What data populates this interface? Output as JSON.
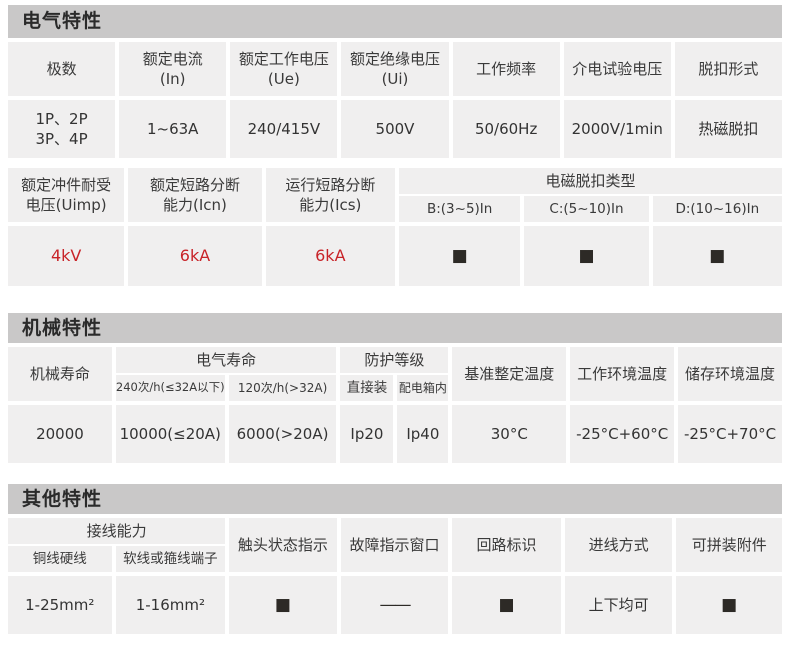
{
  "colors": {
    "bar_bg": "#c9c8c8",
    "cell_bg": "#f0efef",
    "text": "#333333",
    "red_value": "#c82328",
    "square": "#2d2a26"
  },
  "s1": {
    "title": "电气特性",
    "g1": {
      "h": [
        {
          "a": "极数",
          "b": ""
        },
        {
          "a": "额定电流",
          "b": "(In)"
        },
        {
          "a": "额定工作电压",
          "b": "(Ue)"
        },
        {
          "a": "额定绝缘电压",
          "b": "(Ui)"
        },
        {
          "a": "工作频率",
          "b": ""
        },
        {
          "a": "介电试验电压",
          "b": ""
        },
        {
          "a": "脱扣形式",
          "b": ""
        }
      ],
      "v": [
        {
          "a": "1P、2P",
          "b": "3P、4P"
        },
        {
          "a": "1~63A",
          "b": ""
        },
        {
          "a": "240/415V",
          "b": ""
        },
        {
          "a": "500V",
          "b": ""
        },
        {
          "a": "50/60Hz",
          "b": ""
        },
        {
          "a": "2000V/1min",
          "b": ""
        },
        {
          "a": "热磁脱扣",
          "b": ""
        }
      ]
    },
    "g2": {
      "h": [
        {
          "a": "额定冲件耐受",
          "b": "电压(Uimp)"
        },
        {
          "a": "额定短路分断",
          "b": "能力(Icn)"
        },
        {
          "a": "运行短路分断",
          "b": "能力(Ics)"
        }
      ],
      "group_title": "电磁脱扣类型",
      "sub": [
        "B:(3~5)In",
        "C:(5~10)In",
        "D:(10~16)In"
      ],
      "v_red": [
        "4kV",
        "6kA",
        "6kA"
      ],
      "v_sq": [
        "■",
        "■",
        "■"
      ]
    }
  },
  "s2": {
    "title": "机械特性",
    "h_life": "机械寿命",
    "g_elec": {
      "title": "电气寿命",
      "sub": [
        "240次/h(≤32A以下)",
        "120次/h(>32A)"
      ]
    },
    "g_prot": {
      "title": "防护等级",
      "sub": [
        "直接装",
        "配电箱内"
      ]
    },
    "h_rest": [
      "基准整定温度",
      "工作环境温度",
      "储存环境温度"
    ],
    "v": [
      "20000",
      "10000(≤20A)",
      "6000(>20A)",
      "Ip20",
      "Ip40",
      "30°C",
      "-25°C+60°C",
      "-25°C+70°C"
    ]
  },
  "s3": {
    "title": "其他特性",
    "g_wire": {
      "title": "接线能力",
      "sub": [
        "铜线硬线",
        "软线或箍线端子"
      ]
    },
    "h_rest": [
      "触头状态指示",
      "故障指示窗口",
      "回路标识",
      "进线方式",
      "可拼装附件"
    ],
    "v": [
      "1-25mm²",
      "1-16mm²",
      "■",
      "——",
      "■",
      "上下均可",
      "■"
    ]
  }
}
